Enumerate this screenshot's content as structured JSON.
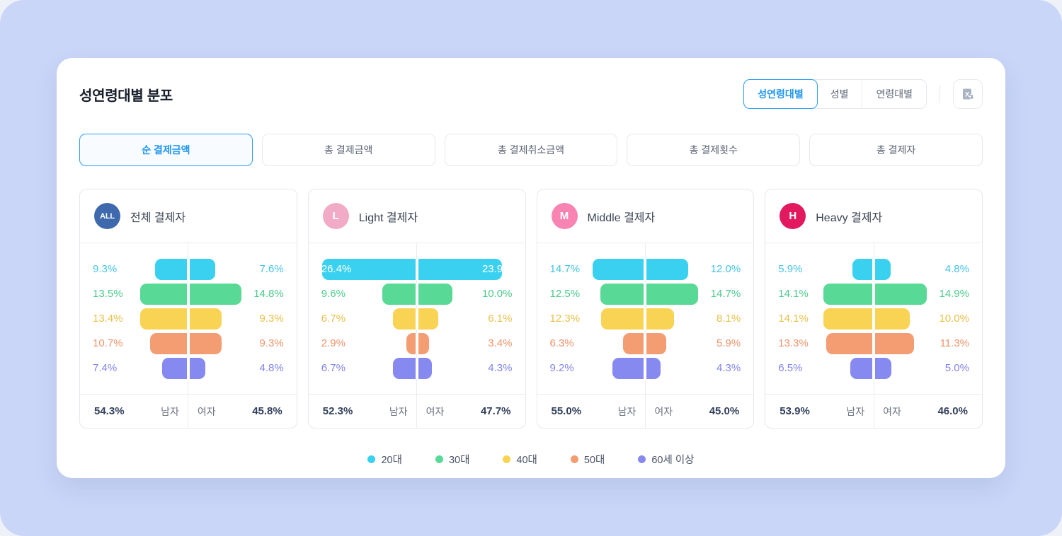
{
  "page": {
    "title": "성연령대별 분포",
    "background_color": "#c9d6f8",
    "accent_blue": "#1e96f0"
  },
  "view_tabs": [
    {
      "label": "성연령대별",
      "selected": true
    },
    {
      "label": "성별",
      "selected": false
    },
    {
      "label": "연령대별",
      "selected": false
    }
  ],
  "export_button": {
    "icon": "excel-download-icon"
  },
  "metric_tabs": [
    {
      "label": "순 결제금액",
      "selected": true
    },
    {
      "label": "총 결제금액",
      "selected": false
    },
    {
      "label": "총 결제취소금액",
      "selected": false
    },
    {
      "label": "총 결제횟수",
      "selected": false
    },
    {
      "label": "총 결제자",
      "selected": false
    }
  ],
  "age_groups": [
    {
      "label": "20대",
      "bar_color": "#3ad1f1",
      "text_color": "#47c3e7"
    },
    {
      "label": "30대",
      "bar_color": "#58d996",
      "text_color": "#4cca8b"
    },
    {
      "label": "40대",
      "bar_color": "#f9d353",
      "text_color": "#e8c049"
    },
    {
      "label": "50대",
      "bar_color": "#f49d72",
      "text_color": "#ef946a"
    },
    {
      "label": "60세 이상",
      "bar_color": "#8689f0",
      "text_color": "#8184ea"
    }
  ],
  "summary_labels": {
    "male": "남자",
    "female": "여자"
  },
  "unit": "%",
  "chart_data": [
    {
      "type": "bar",
      "subtype": "population-pyramid",
      "badge": "ALL",
      "badge_color": "#3e69ac",
      "title": "전체 결제자",
      "categories": [
        "20대",
        "30대",
        "40대",
        "50대",
        "60세 이상"
      ],
      "series": [
        {
          "name": "남자",
          "values": [
            9.3,
            13.5,
            13.4,
            10.7,
            7.4
          ]
        },
        {
          "name": "여자",
          "values": [
            7.6,
            14.8,
            9.3,
            9.3,
            4.8
          ]
        }
      ],
      "male_total": 54.3,
      "female_total": 45.8
    },
    {
      "type": "bar",
      "subtype": "population-pyramid",
      "badge": "L",
      "badge_color": "#f2abc7",
      "title": "Light 결제자",
      "categories": [
        "20대",
        "30대",
        "40대",
        "50대",
        "60세 이상"
      ],
      "series": [
        {
          "name": "남자",
          "values": [
            26.4,
            9.6,
            6.7,
            2.9,
            6.7
          ]
        },
        {
          "name": "여자",
          "values": [
            23.9,
            10.0,
            6.1,
            3.4,
            4.3
          ]
        }
      ],
      "male_total": 52.3,
      "female_total": 47.7
    },
    {
      "type": "bar",
      "subtype": "population-pyramid",
      "badge": "M",
      "badge_color": "#f884b3",
      "title": "Middle 결제자",
      "categories": [
        "20대",
        "30대",
        "40대",
        "50대",
        "60세 이상"
      ],
      "series": [
        {
          "name": "남자",
          "values": [
            14.7,
            12.5,
            12.3,
            6.3,
            9.2
          ]
        },
        {
          "name": "여자",
          "values": [
            12.0,
            14.7,
            8.1,
            5.9,
            4.3
          ]
        }
      ],
      "male_total": 55.0,
      "female_total": 45.0
    },
    {
      "type": "bar",
      "subtype": "population-pyramid",
      "badge": "H",
      "badge_color": "#e2195e",
      "title": "Heavy 결제자",
      "categories": [
        "20대",
        "30대",
        "40대",
        "50대",
        "60세 이상"
      ],
      "series": [
        {
          "name": "남자",
          "values": [
            5.9,
            14.1,
            14.1,
            13.3,
            6.5
          ]
        },
        {
          "name": "여자",
          "values": [
            4.8,
            14.9,
            10.0,
            11.3,
            5.0
          ]
        }
      ],
      "male_total": 53.9,
      "female_total": 46.0
    }
  ]
}
